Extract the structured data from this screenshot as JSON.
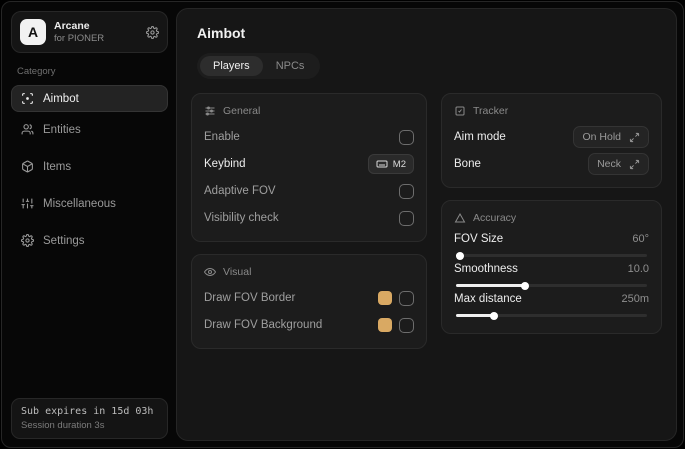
{
  "sidebar": {
    "brand": {
      "initial": "A",
      "name": "Arcane",
      "subtitle": "for PIONER"
    },
    "category_label": "Category",
    "items": [
      {
        "label": "Aimbot"
      },
      {
        "label": "Entities"
      },
      {
        "label": "Items"
      },
      {
        "label": "Miscellaneous"
      },
      {
        "label": "Settings"
      }
    ],
    "footer": {
      "sub_expiry": "Sub expires in 15d 03h",
      "session_duration": "Session duration 3s"
    }
  },
  "header": {
    "title": "Aimbot",
    "tabs": [
      {
        "label": "Players"
      },
      {
        "label": "NPCs"
      }
    ]
  },
  "colors": {
    "fov_swatch": "#d9a963"
  },
  "sections": {
    "general": {
      "title": "General",
      "rows": {
        "enable": {
          "label": "Enable",
          "checked": false
        },
        "keybind": {
          "label": "Keybind",
          "value": "M2"
        },
        "adaptive_fov": {
          "label": "Adaptive FOV",
          "checked": false
        },
        "visibility_check": {
          "label": "Visibility check",
          "checked": false
        }
      }
    },
    "visual": {
      "title": "Visual",
      "rows": {
        "fov_border": {
          "label": "Draw FOV Border",
          "checked": false
        },
        "fov_background": {
          "label": "Draw FOV Background",
          "checked": false
        }
      }
    },
    "tracker": {
      "title": "Tracker",
      "rows": {
        "aim_mode": {
          "label": "Aim mode",
          "value": "On Hold"
        },
        "bone": {
          "label": "Bone",
          "value": "Neck"
        }
      }
    },
    "accuracy": {
      "title": "Accuracy",
      "rows": {
        "fov_size": {
          "label": "FOV Size",
          "value": "60°",
          "fill_pct": 2
        },
        "smoothness": {
          "label": "Smoothness",
          "value": "10.0",
          "fill_pct": 36
        },
        "max_distance": {
          "label": "Max distance",
          "value": "250m",
          "fill_pct": 20
        }
      }
    }
  }
}
